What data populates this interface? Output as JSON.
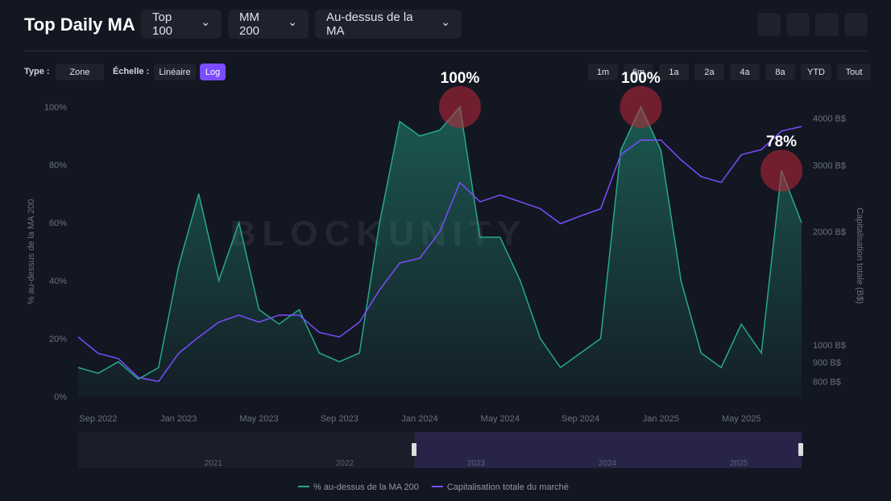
{
  "header": {
    "title": "Top Daily MA",
    "selects": [
      "Top 100",
      "MM 200",
      "Au-dessus de la MA"
    ]
  },
  "toolbar": {
    "type_label": "Type :",
    "type_value": "Zone",
    "scale_label": "Échelle :",
    "scales": [
      "Linéaire",
      "Log"
    ],
    "active_scale": 1,
    "ranges": [
      "1m",
      "6m",
      "1a",
      "2a",
      "4a",
      "8a",
      "YTD",
      "Tout"
    ]
  },
  "chart_data": {
    "type": "line",
    "watermark": "BLOCKUNITY",
    "ylabel": "% au-dessus de la MA 200",
    "y2label": "Capitalisation totale (B$)",
    "x": [
      "2022-08",
      "2022-09",
      "2022-10",
      "2022-11",
      "2022-12",
      "2023-01",
      "2023-02",
      "2023-03",
      "2023-04",
      "2023-05",
      "2023-06",
      "2023-07",
      "2023-08",
      "2023-09",
      "2023-10",
      "2023-11",
      "2023-12",
      "2024-01",
      "2024-02",
      "2024-03",
      "2024-04",
      "2024-05",
      "2024-06",
      "2024-07",
      "2024-08",
      "2024-09",
      "2024-10",
      "2024-11",
      "2024-12",
      "2025-01",
      "2025-02",
      "2025-03",
      "2025-04",
      "2025-05",
      "2025-06",
      "2025-07",
      "2025-08"
    ],
    "series": [
      {
        "name": "% au-dessus de la MA 200",
        "color": "#26a88a",
        "area": true,
        "values": [
          10,
          8,
          12,
          6,
          10,
          45,
          70,
          40,
          60,
          30,
          25,
          30,
          15,
          12,
          15,
          60,
          95,
          90,
          92,
          100,
          55,
          55,
          40,
          20,
          10,
          15,
          20,
          85,
          100,
          85,
          40,
          15,
          10,
          25,
          15,
          78,
          60
        ]
      },
      {
        "name": "Capitalisation totale du marché",
        "color": "#7b4dff",
        "axis": "y2",
        "values": [
          1050,
          950,
          920,
          820,
          800,
          950,
          1050,
          1150,
          1200,
          1150,
          1200,
          1200,
          1080,
          1050,
          1150,
          1400,
          1650,
          1700,
          2000,
          2700,
          2400,
          2500,
          2400,
          2300,
          2100,
          2200,
          2300,
          3200,
          3500,
          3500,
          3100,
          2800,
          2700,
          3200,
          3300,
          3700,
          3800
        ]
      }
    ],
    "xlim": [
      "2022-08",
      "2025-08"
    ],
    "xticks": [
      {
        "value": "2022-09",
        "label": "Sep 2022"
      },
      {
        "value": "2023-01",
        "label": "Jan 2023"
      },
      {
        "value": "2023-05",
        "label": "May 2023"
      },
      {
        "value": "2023-09",
        "label": "Sep 2023"
      },
      {
        "value": "2024-01",
        "label": "Jan 2024"
      },
      {
        "value": "2024-05",
        "label": "May 2024"
      },
      {
        "value": "2024-09",
        "label": "Sep 2024"
      },
      {
        "value": "2025-01",
        "label": "Jan 2025"
      },
      {
        "value": "2025-05",
        "label": "May 2025"
      }
    ],
    "ylim": [
      0,
      100
    ],
    "yticks": [
      {
        "value": 0,
        "label": "0%"
      },
      {
        "value": 20,
        "label": "20%"
      },
      {
        "value": 40,
        "label": "40%"
      },
      {
        "value": 60,
        "label": "60%"
      },
      {
        "value": 80,
        "label": "80%"
      },
      {
        "value": 100,
        "label": "100%"
      }
    ],
    "y2lim": [
      730,
      4285
    ],
    "y2log": true,
    "y2ticks": [
      {
        "value": 800,
        "label": "800 B$"
      },
      {
        "value": 900,
        "label": "900 B$"
      },
      {
        "value": 1000,
        "label": "1000 B$"
      },
      {
        "value": 2000,
        "label": "2000 B$"
      },
      {
        "value": 3000,
        "label": "3000 B$"
      },
      {
        "value": 4000,
        "label": "4000 B$"
      }
    ],
    "annotations": [
      {
        "text": "100%",
        "x": "2024-03",
        "y": 100
      },
      {
        "text": "100%",
        "x": "2024-12",
        "y": 100
      },
      {
        "text": "78%",
        "x": "2025-07",
        "y": 78
      }
    ],
    "legend": "bottom"
  },
  "navigator": {
    "labels": [
      "2021",
      "2022",
      "2023",
      "2024",
      "2025"
    ]
  }
}
